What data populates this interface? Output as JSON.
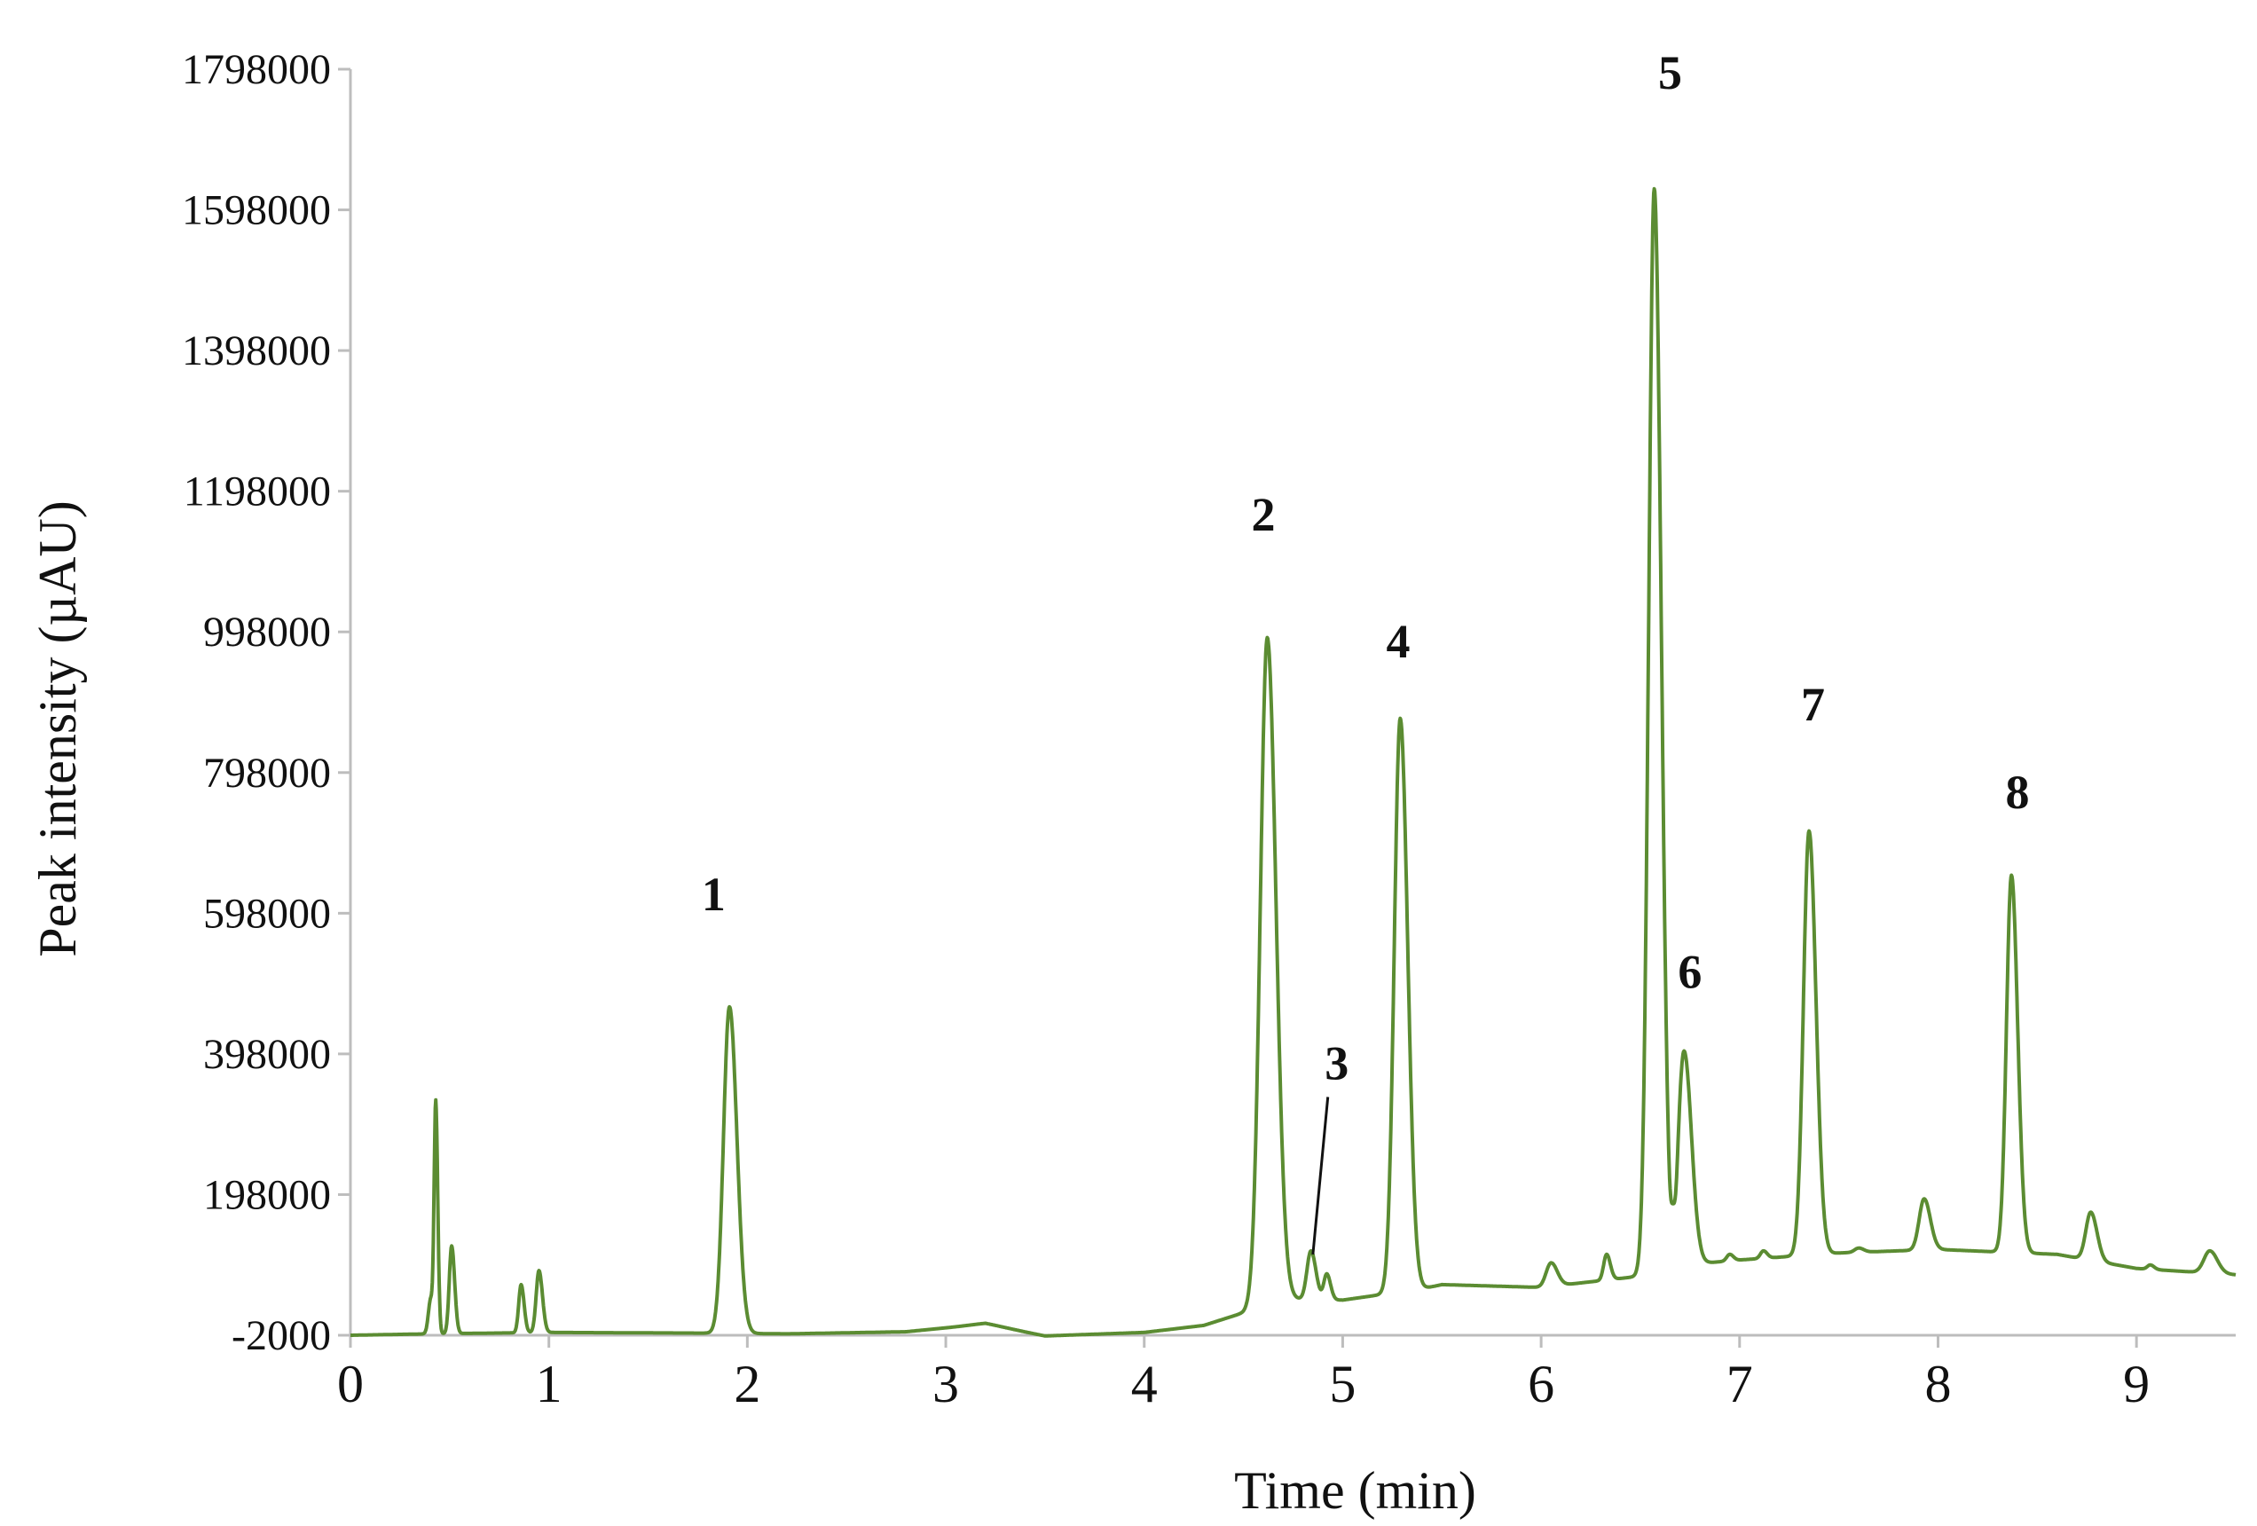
{
  "chart_data": {
    "type": "line",
    "title": "",
    "xlabel": "Time (min)",
    "ylabel": "Peak intensity (µAU)",
    "xlim": [
      0,
      9.5
    ],
    "ylim": [
      -2000,
      1798000
    ],
    "x_ticks": [
      "0",
      "1",
      "2",
      "3",
      "4",
      "5",
      "6",
      "7",
      "8",
      "9"
    ],
    "y_ticks": [
      "-2000",
      "198000",
      "398000",
      "598000",
      "798000",
      "998000",
      "1198000",
      "1398000",
      "1598000",
      "1798000"
    ],
    "grid": false,
    "line_color": "#5b8c32",
    "baseline": [
      [
        0,
        -2000
      ],
      [
        0.4,
        0
      ],
      [
        1.0,
        2000
      ],
      [
        1.8,
        1000
      ],
      [
        2.2,
        0
      ],
      [
        2.8,
        3000
      ],
      [
        3.2,
        14000
      ],
      [
        3.5,
        -3000
      ],
      [
        4.0,
        2000
      ],
      [
        4.3,
        12000
      ],
      [
        4.5,
        30000
      ],
      [
        4.62,
        50000
      ],
      [
        5.0,
        48000
      ],
      [
        5.4,
        64000
      ],
      [
        5.5,
        70000
      ],
      [
        6.0,
        66000
      ],
      [
        6.5,
        82000
      ],
      [
        6.8,
        100000
      ],
      [
        7.0,
        105000
      ],
      [
        7.5,
        115000
      ],
      [
        8.0,
        120000
      ],
      [
        8.6,
        113000
      ],
      [
        9.0,
        93000
      ],
      [
        9.5,
        84000
      ]
    ],
    "peaks": [
      {
        "x": 0.405,
        "y": 50000,
        "w": 0.012
      },
      {
        "x": 0.43,
        "y": 320000,
        "w": 0.008
      },
      {
        "x": 0.51,
        "y": 125000,
        "w": 0.012
      },
      {
        "x": 0.86,
        "y": 70000,
        "w": 0.012
      },
      {
        "x": 0.95,
        "y": 90000,
        "w": 0.014
      },
      {
        "x": 1.91,
        "y": 465000,
        "w": 0.03
      },
      {
        "x": 3.2,
        "y": 15000,
        "w": 0.08
      },
      {
        "x": 4.62,
        "y": 990000,
        "w": 0.035
      },
      {
        "x": 4.84,
        "y": 118000,
        "w": 0.02
      },
      {
        "x": 4.92,
        "y": 85000,
        "w": 0.015
      },
      {
        "x": 5.29,
        "y": 875000,
        "w": 0.03
      },
      {
        "x": 6.05,
        "y": 101000,
        "w": 0.025
      },
      {
        "x": 6.33,
        "y": 113000,
        "w": 0.015
      },
      {
        "x": 6.57,
        "y": 1628000,
        "w": 0.028
      },
      {
        "x": 6.72,
        "y": 402000,
        "w": 0.03
      },
      {
        "x": 6.95,
        "y": 113000,
        "w": 0.015
      },
      {
        "x": 7.12,
        "y": 118000,
        "w": 0.015
      },
      {
        "x": 7.35,
        "y": 715000,
        "w": 0.028
      },
      {
        "x": 7.6,
        "y": 122000,
        "w": 0.02
      },
      {
        "x": 7.93,
        "y": 192000,
        "w": 0.025
      },
      {
        "x": 8.37,
        "y": 652000,
        "w": 0.025
      },
      {
        "x": 8.66,
        "y": 110000,
        "w": 0.02
      },
      {
        "x": 8.77,
        "y": 173000,
        "w": 0.025
      },
      {
        "x": 9.07,
        "y": 98000,
        "w": 0.015
      },
      {
        "x": 9.37,
        "y": 118000,
        "w": 0.03
      }
    ],
    "valleys": [
      {
        "x": 6.665,
        "y": 185000,
        "w": 0.012
      }
    ],
    "annotations": [
      {
        "text": "1",
        "x": 1.83,
        "y": 602000,
        "bold": true
      },
      {
        "text": "2",
        "x": 4.6,
        "y": 1142000,
        "bold": true
      },
      {
        "text": "3",
        "x": 4.97,
        "y": 362000,
        "bold": true,
        "arrow_to": [
          4.85,
          113000
        ]
      },
      {
        "text": "4",
        "x": 5.28,
        "y": 962000,
        "bold": true
      },
      {
        "text": "5",
        "x": 6.65,
        "y": 1770000,
        "bold": true
      },
      {
        "text": "6",
        "x": 6.75,
        "y": 492000,
        "bold": true
      },
      {
        "text": "7",
        "x": 7.37,
        "y": 872000,
        "bold": true
      },
      {
        "text": "8",
        "x": 8.4,
        "y": 747000,
        "bold": true
      }
    ]
  }
}
